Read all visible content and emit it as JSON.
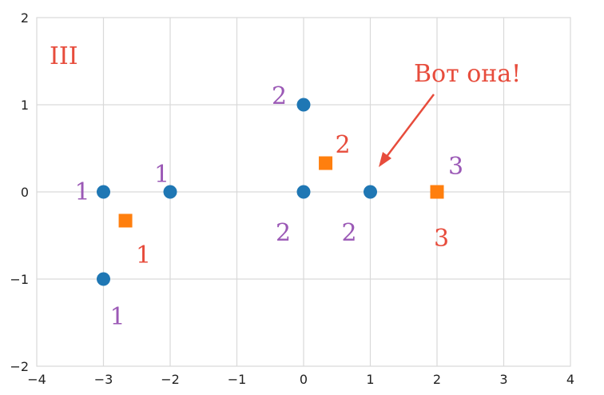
{
  "chart_data": {
    "type": "scatter",
    "title": "",
    "xlabel": "",
    "ylabel": "",
    "xlim": [
      -4,
      4
    ],
    "ylim": [
      -2,
      2
    ],
    "x_ticks": [
      -4,
      -3,
      -2,
      -1,
      0,
      1,
      2,
      3,
      4
    ],
    "y_ticks": [
      -2,
      -1,
      0,
      1,
      2
    ],
    "x_tick_labels": [
      "−4",
      "−3",
      "−2",
      "−1",
      "0",
      "1",
      "2",
      "3",
      "4"
    ],
    "y_tick_labels": [
      "−2",
      "−1",
      "0",
      "1",
      "2"
    ],
    "grid": true,
    "colors": {
      "points": "#1f77b4",
      "centroids": "#ff7f0e",
      "point_labels": "#9b59b6",
      "centroid_labels": "#e74c3c",
      "annotation": "#e74c3c",
      "grid": "#d9d9d9"
    },
    "series": [
      {
        "marker": "circle",
        "points": [
          {
            "x": -3,
            "y": 0,
            "label": "1"
          },
          {
            "x": -2,
            "y": 0,
            "label": "1"
          },
          {
            "x": -3,
            "y": -1,
            "label": "1"
          },
          {
            "x": 0,
            "y": 1,
            "label": "2"
          },
          {
            "x": 0,
            "y": 0,
            "label": "2"
          },
          {
            "x": 1,
            "y": 0,
            "label": "2"
          }
        ]
      },
      {
        "marker": "square",
        "points": [
          {
            "x": -2.67,
            "y": -0.33,
            "label": "1"
          },
          {
            "x": 0.33,
            "y": 0.33,
            "label": "2"
          },
          {
            "x": 2,
            "y": 0,
            "label": "3"
          }
        ]
      }
    ],
    "extra_labels": [
      {
        "text": "3",
        "near": "x=2 centroid, above-right"
      }
    ],
    "panel_label": "III",
    "annotation": {
      "text": "Вот она!",
      "target": {
        "x": 1,
        "y": 0
      }
    }
  }
}
